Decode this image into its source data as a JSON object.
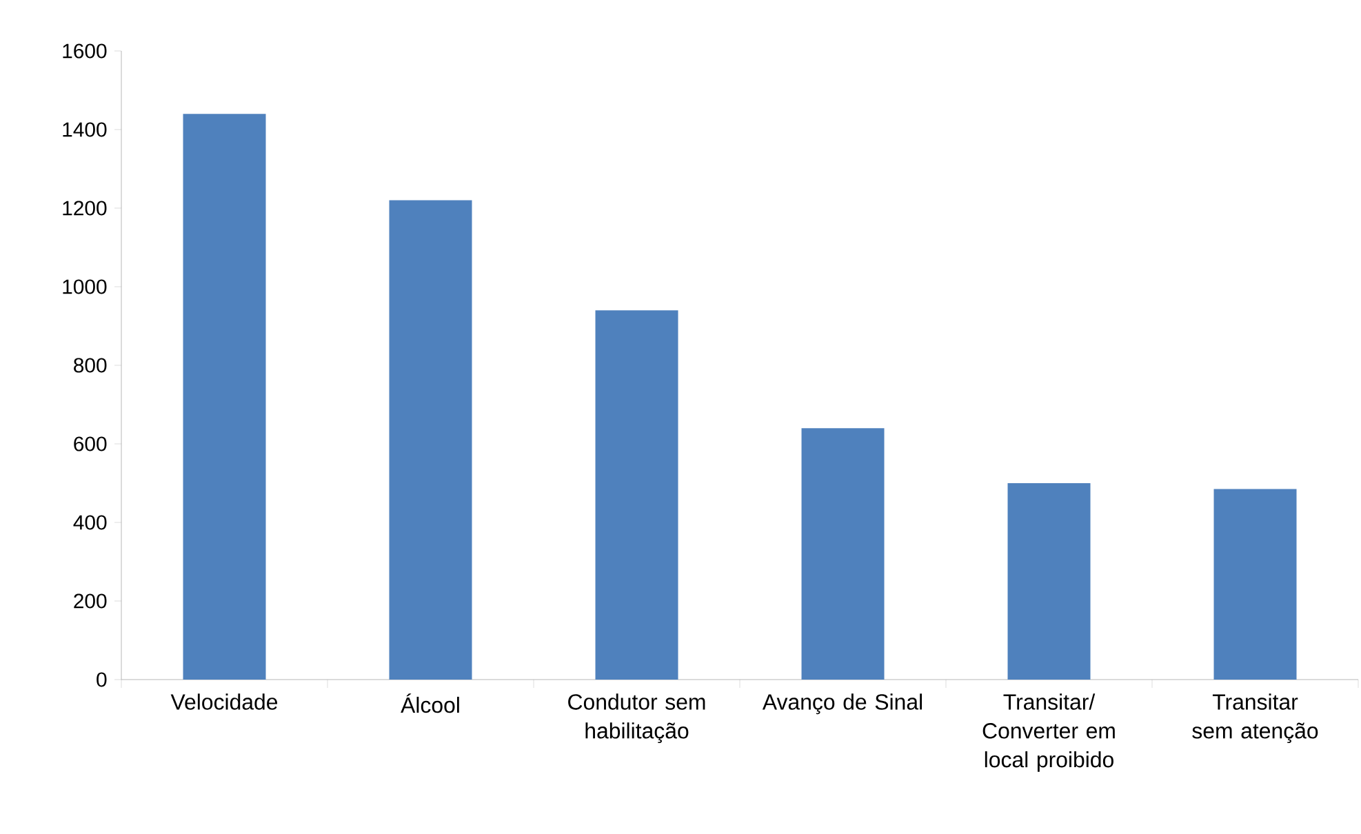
{
  "chart_data": {
    "type": "bar",
    "categories": [
      "Velocidade",
      "Álcool",
      "Condutor sem habilitação",
      "Avanço de Sinal",
      "Transitar/ Converter em local proibido",
      "Transitar sem atenção"
    ],
    "values": [
      1440,
      1220,
      940,
      640,
      500,
      485
    ],
    "color": "#4f81bd",
    "ylim": [
      0,
      1600
    ],
    "yticks": [
      0,
      200,
      400,
      600,
      800,
      1000,
      1200,
      1400,
      1600
    ],
    "grid": false
  }
}
